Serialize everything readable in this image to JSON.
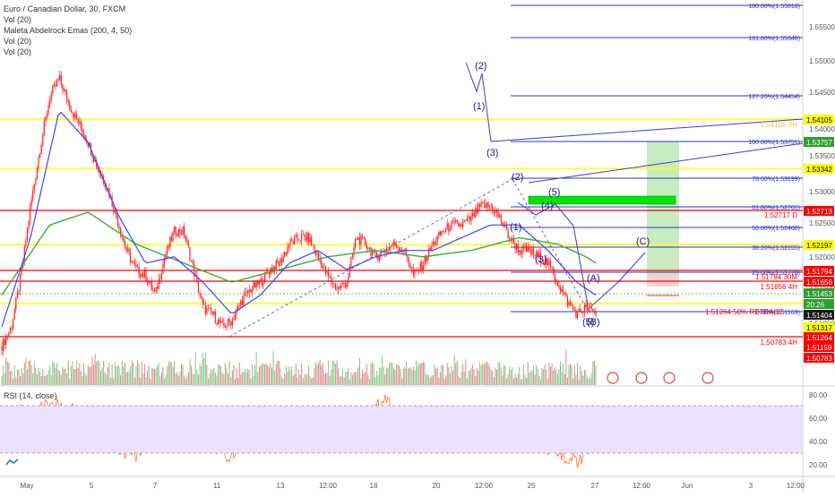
{
  "legend": {
    "title": "Euro / Canadian Dollar, 30, FXCM",
    "line2": "Vol (20)",
    "line3": "Maleta Abdelrock Emas (200, 4, 50)",
    "line4": "Vol (20)",
    "line5": "Vol (20)"
  },
  "rsi_label": "RSI (14, close)",
  "colors": {
    "candles": "#ff1f1f",
    "ema_fast": "#4040ff",
    "ema_slow": "#3faa3f",
    "yellow": "#ffff00",
    "red": "#ff0000",
    "fib": "#3030cc",
    "wave": "#1a1a8c",
    "rsi": "#ff7f3f",
    "rsi_band": "#e8d4ff",
    "green_zone": "#b8e6b0",
    "green_box": "#00e600"
  },
  "chart_data": {
    "type": "line",
    "price_axis": {
      "ylim": [
        1.5054,
        1.5605
      ],
      "ticks": [
        "1.55500",
        "1.55000",
        "1.54500",
        "1.54000",
        "1.53500",
        "1.53000",
        "1.52500",
        "1.52000",
        "1.51500",
        "1.51000"
      ]
    },
    "x_labels": [
      "May",
      "5",
      "7",
      "11",
      "13",
      "12:00",
      "18",
      "20",
      "12:00",
      "25",
      "27",
      "12:00",
      "Jun",
      "3",
      "12:00"
    ],
    "price_series": [
      [
        0,
        1.509
      ],
      [
        1,
        1.512
      ],
      [
        2,
        1.52
      ],
      [
        3,
        1.531
      ],
      [
        4,
        1.54
      ],
      [
        5,
        1.548
      ],
      [
        6,
        1.551
      ],
      [
        7,
        1.547
      ],
      [
        8,
        1.544
      ],
      [
        9,
        1.541
      ],
      [
        10,
        1.537
      ],
      [
        11,
        1.534
      ],
      [
        12,
        1.529
      ],
      [
        13,
        1.524
      ],
      [
        14,
        1.521
      ],
      [
        15,
        1.52
      ],
      [
        16,
        1.517
      ],
      [
        17,
        1.523
      ],
      [
        18,
        1.527
      ],
      [
        19,
        1.527
      ],
      [
        20,
        1.521
      ],
      [
        21,
        1.515
      ],
      [
        22,
        1.514
      ],
      [
        23,
        1.512
      ],
      [
        24,
        1.513
      ],
      [
        25,
        1.516
      ],
      [
        26,
        1.518
      ],
      [
        27,
        1.519
      ],
      [
        28,
        1.521
      ],
      [
        29,
        1.522
      ],
      [
        30,
        1.525
      ],
      [
        31,
        1.526
      ],
      [
        32,
        1.526
      ],
      [
        33,
        1.523
      ],
      [
        34,
        1.52
      ],
      [
        35,
        1.518
      ],
      [
        36,
        1.519
      ],
      [
        37,
        1.526
      ],
      [
        38,
        1.525
      ],
      [
        39,
        1.523
      ],
      [
        40,
        1.524
      ],
      [
        41,
        1.525
      ],
      [
        42,
        1.524
      ],
      [
        43,
        1.52
      ],
      [
        44,
        1.522
      ],
      [
        45,
        1.525
      ],
      [
        46,
        1.527
      ],
      [
        47,
        1.528
      ],
      [
        48,
        1.528
      ],
      [
        49,
        1.529
      ],
      [
        50,
        1.531
      ],
      [
        51,
        1.531
      ],
      [
        52,
        1.529
      ],
      [
        53,
        1.526
      ],
      [
        54,
        1.524
      ],
      [
        55,
        1.524
      ],
      [
        56,
        1.523
      ],
      [
        57,
        1.522
      ],
      [
        58,
        1.519
      ],
      [
        59,
        1.516
      ],
      [
        60,
        1.514
      ],
      [
        61,
        1.515
      ],
      [
        62,
        1.514
      ]
    ],
    "ema_fast": [
      [
        0,
        1.512
      ],
      [
        3,
        1.526
      ],
      [
        6,
        1.546
      ],
      [
        9,
        1.541
      ],
      [
        12,
        1.53
      ],
      [
        15,
        1.522
      ],
      [
        18,
        1.523
      ],
      [
        21,
        1.519
      ],
      [
        24,
        1.514
      ],
      [
        27,
        1.517
      ],
      [
        30,
        1.522
      ],
      [
        33,
        1.524
      ],
      [
        36,
        1.521
      ],
      [
        39,
        1.523
      ],
      [
        42,
        1.524
      ],
      [
        45,
        1.524
      ],
      [
        48,
        1.526
      ],
      [
        51,
        1.528
      ],
      [
        54,
        1.528
      ],
      [
        57,
        1.524
      ],
      [
        60,
        1.519
      ],
      [
        62,
        1.517
      ]
    ],
    "ema_slow": [
      [
        0,
        1.517
      ],
      [
        5,
        1.528
      ],
      [
        9,
        1.53
      ],
      [
        14,
        1.525
      ],
      [
        19,
        1.522
      ],
      [
        24,
        1.519
      ],
      [
        29,
        1.521
      ],
      [
        34,
        1.523
      ],
      [
        39,
        1.524
      ],
      [
        44,
        1.523
      ],
      [
        49,
        1.524
      ],
      [
        54,
        1.526
      ],
      [
        58,
        1.525
      ],
      [
        61,
        1.523
      ],
      [
        62,
        1.522
      ]
    ],
    "rsi_axis": {
      "ylim": [
        15,
        85
      ],
      "ticks": [
        "80.00",
        "60.00",
        "40.00",
        "20.00"
      ]
    },
    "rsi_series": [
      [
        0,
        55
      ],
      [
        2,
        65
      ],
      [
        4,
        68
      ],
      [
        6,
        72
      ],
      [
        8,
        63
      ],
      [
        10,
        50
      ],
      [
        12,
        38
      ],
      [
        14,
        30
      ],
      [
        16,
        44
      ],
      [
        18,
        55
      ],
      [
        20,
        48
      ],
      [
        22,
        36
      ],
      [
        24,
        31
      ],
      [
        26,
        48
      ],
      [
        28,
        58
      ],
      [
        30,
        66
      ],
      [
        32,
        55
      ],
      [
        34,
        47
      ],
      [
        36,
        41
      ],
      [
        38,
        60
      ],
      [
        40,
        74
      ],
      [
        42,
        55
      ],
      [
        44,
        47
      ],
      [
        46,
        55
      ],
      [
        48,
        60
      ],
      [
        50,
        52
      ],
      [
        52,
        56
      ],
      [
        54,
        47
      ],
      [
        56,
        40
      ],
      [
        58,
        36
      ],
      [
        60,
        25
      ],
      [
        61,
        33
      ],
      [
        62,
        41
      ]
    ]
  },
  "price_labels": {
    "p155500": "1.55500",
    "p155000": "1.55000",
    "p154500": "1.54500",
    "p154000": "1.54000",
    "p153500": "1.53500",
    "p153000": "1.53000",
    "p152500": "1.52500",
    "p152000": "1.52000",
    "p151500": "1.51500",
    "p151000": "1.51000"
  },
  "price_tags": {
    "t1": "1.54105",
    "t2": "1.53757",
    "t3": "1.53342",
    "t4": "1.52713",
    "t5": "1.52197",
    "t6": "1.51794",
    "t7": "1.51656",
    "t8": "1.51453",
    "t9": "20:26",
    "t10": "1.51404",
    "t11": "1.51317",
    "t12": "1.51264",
    "t13": "1.51159",
    "t14": "1.50783"
  },
  "fib_levels": {
    "f180": "180.00%(1.55818)",
    "f161": "161.80%(1.55348)",
    "f127": "127.20%(1.54454)",
    "f100": "100.00%(1.53751)",
    "f786": "78.60%(1.53199)",
    "f618": "61.80%(1.52765)",
    "f50": "50.00%(1.52460)",
    "f382": "38.20%(1.52155)",
    "f236": "23.60%(1.51778)",
    "f0": "0.00%(1.51169)"
  },
  "annotations": {
    "a1": "1.52717 D",
    "a2": "1.51794 30M",
    "a3": "1.51656 4H",
    "a4": "1.51264 50% RETRACE",
    "a5": "1.50783 4H",
    "a6": "1.54105 4H"
  },
  "waves": {
    "w1": "(1)",
    "w2": "(2)",
    "w3": "(3)",
    "w4": "(4)",
    "w5": "(5)",
    "wA": "(A)",
    "wB": "(B)",
    "wC": "(C)",
    "w1b": "1",
    "w2b": "(2)",
    "w3b": "3"
  },
  "rsi_labels": {
    "r80": "80.00",
    "r60": "60.00",
    "r40": "40.00",
    "r20": "20.00"
  },
  "time_labels": {
    "l0": "May",
    "l1": "5",
    "l2": "7",
    "l3": "11",
    "l4": "13",
    "l5": "12:00",
    "l6": "18",
    "l7": "20",
    "l8": "12:00",
    "l9": "25",
    "l10": "27",
    "l11": "12:00",
    "l12": "Jun",
    "l13": "3",
    "l14": "12:00"
  }
}
